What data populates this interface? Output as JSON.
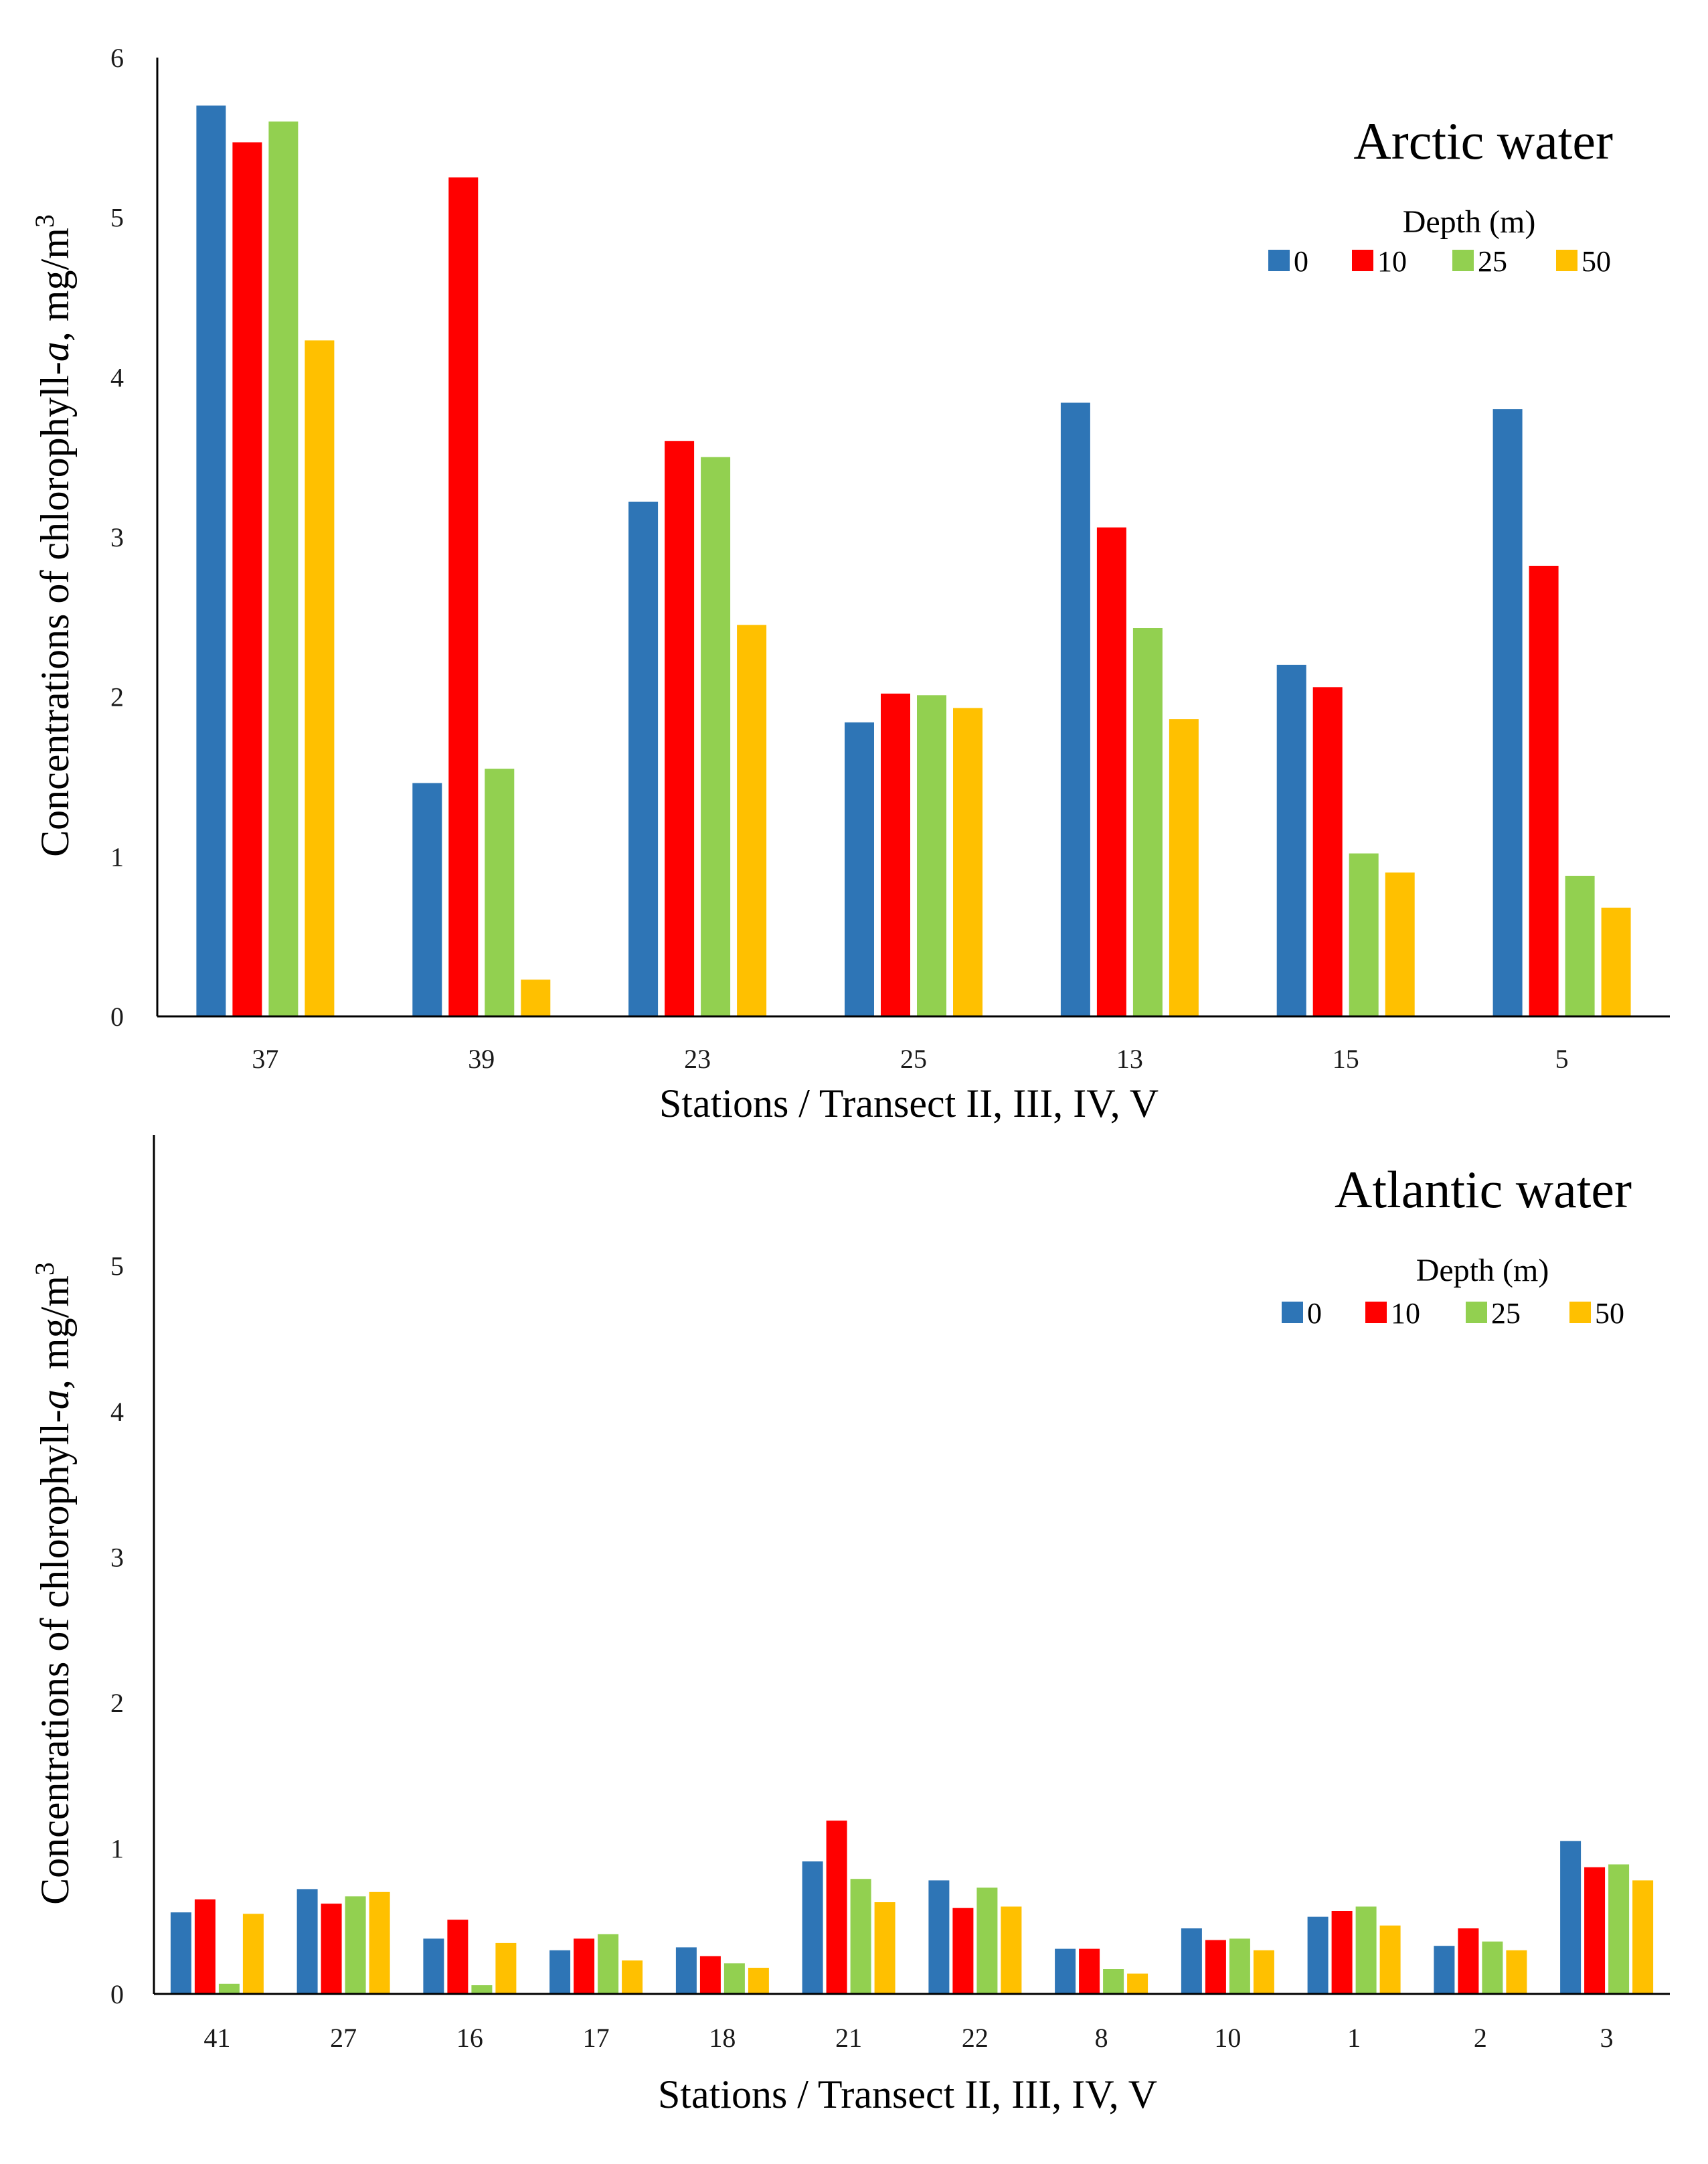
{
  "chart_data": [
    {
      "type": "bar",
      "title": "Arctic water",
      "xlabel": "Stations / Transect II, III, IV, V",
      "ylabel_prefix": "Concentrations of chlorophyll-",
      "ylabel_italic": "a",
      "ylabel_suffix": ",  mg/m",
      "ylabel_sup": "3",
      "ylim": [
        0,
        6
      ],
      "yticks": [
        0,
        1,
        2,
        3,
        4,
        5,
        6
      ],
      "grid": false,
      "legend_title": "Depth (m)",
      "legend_position": "top-right",
      "categories": [
        "37",
        "39",
        "23",
        "25",
        "13",
        "15",
        "5"
      ],
      "series": [
        {
          "name": "0",
          "color": "#2E75B6",
          "values": [
            5.7,
            1.46,
            3.22,
            1.84,
            3.84,
            2.2,
            3.8
          ]
        },
        {
          "name": "10",
          "color": "#FF0000",
          "values": [
            5.47,
            5.25,
            3.6,
            2.02,
            3.06,
            2.06,
            2.82
          ]
        },
        {
          "name": "25",
          "color": "#92D050",
          "values": [
            5.6,
            1.55,
            3.5,
            2.01,
            2.43,
            1.02,
            0.88
          ]
        },
        {
          "name": "50",
          "color": "#FFC000",
          "values": [
            4.23,
            0.23,
            2.45,
            1.93,
            1.86,
            0.9,
            0.68
          ]
        }
      ]
    },
    {
      "type": "bar",
      "title": "Atlantic water",
      "xlabel": "Stations / Transect II, III, IV, V",
      "ylabel_prefix": "Concentrations of chlorophyll-",
      "ylabel_italic": "a",
      "ylabel_suffix": ",  mg/m",
      "ylabel_sup": "3",
      "ylim": [
        0,
        5.9
      ],
      "yticks": [
        0,
        1,
        2,
        3,
        4,
        5
      ],
      "grid": false,
      "legend_title": "Depth (m)",
      "legend_position": "top-right",
      "categories": [
        "41",
        "27",
        "16",
        "17",
        "18",
        "21",
        "22",
        "8",
        "10",
        "1",
        "2",
        "3"
      ],
      "series": [
        {
          "name": "0",
          "color": "#2E75B6",
          "values": [
            0.56,
            0.72,
            0.38,
            0.3,
            0.32,
            0.91,
            0.78,
            0.31,
            0.45,
            0.53,
            0.33,
            1.05
          ]
        },
        {
          "name": "10",
          "color": "#FF0000",
          "values": [
            0.65,
            0.62,
            0.51,
            0.38,
            0.26,
            1.19,
            0.59,
            0.31,
            0.37,
            0.57,
            0.45,
            0.87
          ]
        },
        {
          "name": "25",
          "color": "#92D050",
          "values": [
            0.07,
            0.67,
            0.06,
            0.41,
            0.21,
            0.79,
            0.73,
            0.17,
            0.38,
            0.6,
            0.36,
            0.89
          ]
        },
        {
          "name": "50",
          "color": "#FFC000",
          "values": [
            0.55,
            0.7,
            0.35,
            0.23,
            0.18,
            0.63,
            0.6,
            0.14,
            0.3,
            0.47,
            0.3,
            0.78
          ]
        }
      ]
    }
  ]
}
